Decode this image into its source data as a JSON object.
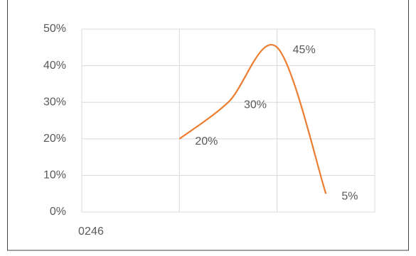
{
  "chart_data": {
    "type": "line",
    "x": [
      2,
      3,
      4,
      5
    ],
    "series": [
      {
        "color": "#ed7d31",
        "values": [
          20,
          30,
          45,
          5
        ],
        "value_labels": [
          "20%",
          "30%",
          "45%",
          "5%"
        ]
      }
    ],
    "xlim": [
      0,
      6
    ],
    "xticks": [
      0,
      2,
      4,
      6
    ],
    "ylim": [
      0,
      50
    ],
    "yticks": [
      {
        "value": 0,
        "label": "0%"
      },
      {
        "value": 10,
        "label": "10%"
      },
      {
        "value": 20,
        "label": "20%"
      },
      {
        "value": 30,
        "label": "30%"
      },
      {
        "value": 40,
        "label": "40%"
      },
      {
        "value": 50,
        "label": "50%"
      }
    ],
    "grid": true
  }
}
